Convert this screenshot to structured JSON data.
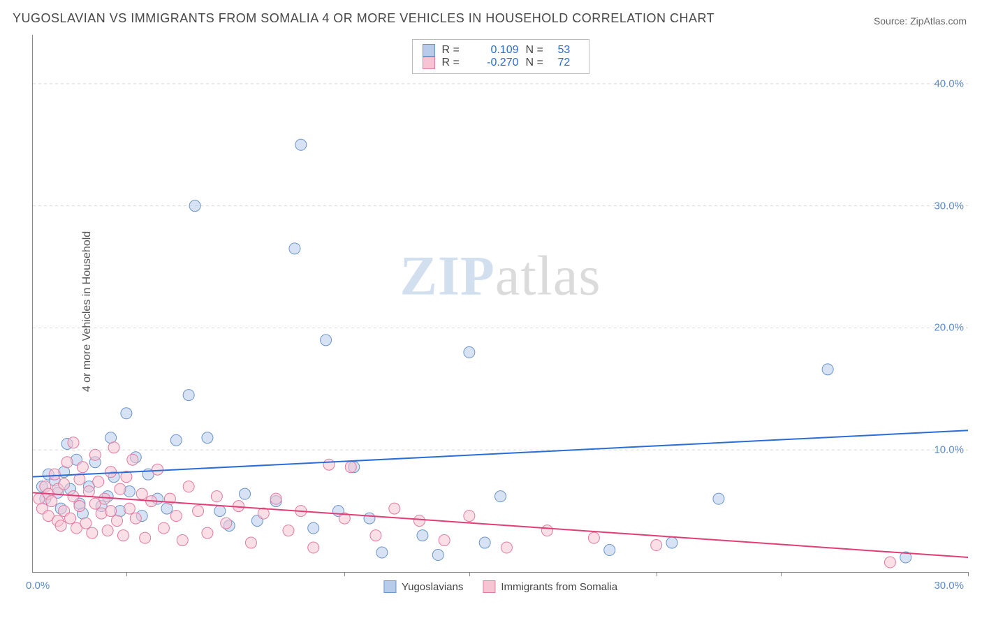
{
  "title": "YUGOSLAVIAN VS IMMIGRANTS FROM SOMALIA 4 OR MORE VEHICLES IN HOUSEHOLD CORRELATION CHART",
  "source_label": "Source:",
  "source_name": "ZipAtlas.com",
  "ylabel": "4 or more Vehicles in Household",
  "watermark_a": "ZIP",
  "watermark_b": "atlas",
  "chart": {
    "type": "scatter",
    "xlim": [
      0,
      30
    ],
    "ylim": [
      0,
      44
    ],
    "yticks": [
      10,
      20,
      30,
      40
    ],
    "ytick_labels": [
      "10.0%",
      "20.0%",
      "30.0%",
      "40.0%"
    ],
    "xticks": [
      3,
      10,
      14,
      20,
      24,
      30
    ],
    "xorigin_label": "0.0%",
    "xend_label": "30.0%",
    "background_color": "#ffffff",
    "grid_color": "#d8d8d8",
    "axis_color": "#888888",
    "tick_color": "#5b8ac9",
    "marker_radius": 8,
    "marker_opacity": 0.55,
    "series": [
      {
        "name": "Yugoslavians",
        "color_fill": "#b7cceb",
        "color_stroke": "#6a94c9",
        "R": "0.109",
        "N": "53",
        "trend": {
          "y_at_x0": 7.8,
          "y_at_xmax": 11.6,
          "stroke": "#2a6dd6",
          "width": 2
        },
        "points": [
          [
            0.3,
            7.0
          ],
          [
            0.4,
            6.0
          ],
          [
            0.5,
            8.0
          ],
          [
            0.7,
            7.5
          ],
          [
            0.8,
            6.5
          ],
          [
            0.9,
            5.2
          ],
          [
            1.0,
            8.2
          ],
          [
            1.1,
            10.5
          ],
          [
            1.2,
            6.8
          ],
          [
            1.4,
            9.2
          ],
          [
            1.5,
            5.6
          ],
          [
            1.6,
            4.8
          ],
          [
            1.8,
            7.0
          ],
          [
            2.0,
            9.0
          ],
          [
            2.2,
            5.4
          ],
          [
            2.4,
            6.2
          ],
          [
            2.5,
            11.0
          ],
          [
            2.6,
            7.8
          ],
          [
            2.8,
            5.0
          ],
          [
            3.0,
            13.0
          ],
          [
            3.1,
            6.6
          ],
          [
            3.3,
            9.4
          ],
          [
            3.5,
            4.6
          ],
          [
            3.7,
            8.0
          ],
          [
            4.0,
            6.0
          ],
          [
            4.3,
            5.2
          ],
          [
            4.6,
            10.8
          ],
          [
            5.0,
            14.5
          ],
          [
            5.2,
            30.0
          ],
          [
            5.6,
            11.0
          ],
          [
            6.0,
            5.0
          ],
          [
            6.3,
            3.8
          ],
          [
            6.8,
            6.4
          ],
          [
            7.2,
            4.2
          ],
          [
            7.8,
            5.8
          ],
          [
            8.4,
            26.5
          ],
          [
            8.6,
            35.0
          ],
          [
            9.0,
            3.6
          ],
          [
            9.4,
            19.0
          ],
          [
            9.8,
            5.0
          ],
          [
            10.3,
            8.6
          ],
          [
            10.8,
            4.4
          ],
          [
            11.2,
            1.6
          ],
          [
            12.5,
            3.0
          ],
          [
            13.0,
            1.4
          ],
          [
            14.0,
            18.0
          ],
          [
            14.5,
            2.4
          ],
          [
            15.0,
            6.2
          ],
          [
            18.5,
            1.8
          ],
          [
            20.5,
            2.4
          ],
          [
            22.0,
            6.0
          ],
          [
            25.5,
            16.6
          ],
          [
            28.0,
            1.2
          ]
        ]
      },
      {
        "name": "Immigrants from Somalia",
        "color_fill": "#f6c4d3",
        "color_stroke": "#e07ba0",
        "R": "-0.270",
        "N": "72",
        "trend": {
          "y_at_x0": 6.5,
          "y_at_xmax": 1.2,
          "stroke": "#e23d74",
          "width": 2
        },
        "points": [
          [
            0.2,
            6.0
          ],
          [
            0.3,
            5.2
          ],
          [
            0.4,
            7.0
          ],
          [
            0.5,
            4.6
          ],
          [
            0.5,
            6.4
          ],
          [
            0.6,
            5.8
          ],
          [
            0.7,
            8.0
          ],
          [
            0.8,
            4.2
          ],
          [
            0.8,
            6.8
          ],
          [
            0.9,
            3.8
          ],
          [
            1.0,
            7.2
          ],
          [
            1.0,
            5.0
          ],
          [
            1.1,
            9.0
          ],
          [
            1.2,
            4.4
          ],
          [
            1.3,
            6.2
          ],
          [
            1.3,
            10.6
          ],
          [
            1.4,
            3.6
          ],
          [
            1.5,
            7.6
          ],
          [
            1.5,
            5.4
          ],
          [
            1.6,
            8.6
          ],
          [
            1.7,
            4.0
          ],
          [
            1.8,
            6.6
          ],
          [
            1.9,
            3.2
          ],
          [
            2.0,
            9.6
          ],
          [
            2.0,
            5.6
          ],
          [
            2.1,
            7.4
          ],
          [
            2.2,
            4.8
          ],
          [
            2.3,
            6.0
          ],
          [
            2.4,
            3.4
          ],
          [
            2.5,
            8.2
          ],
          [
            2.5,
            5.0
          ],
          [
            2.6,
            10.2
          ],
          [
            2.7,
            4.2
          ],
          [
            2.8,
            6.8
          ],
          [
            2.9,
            3.0
          ],
          [
            3.0,
            7.8
          ],
          [
            3.1,
            5.2
          ],
          [
            3.2,
            9.2
          ],
          [
            3.3,
            4.4
          ],
          [
            3.5,
            6.4
          ],
          [
            3.6,
            2.8
          ],
          [
            3.8,
            5.8
          ],
          [
            4.0,
            8.4
          ],
          [
            4.2,
            3.6
          ],
          [
            4.4,
            6.0
          ],
          [
            4.6,
            4.6
          ],
          [
            4.8,
            2.6
          ],
          [
            5.0,
            7.0
          ],
          [
            5.3,
            5.0
          ],
          [
            5.6,
            3.2
          ],
          [
            5.9,
            6.2
          ],
          [
            6.2,
            4.0
          ],
          [
            6.6,
            5.4
          ],
          [
            7.0,
            2.4
          ],
          [
            7.4,
            4.8
          ],
          [
            7.8,
            6.0
          ],
          [
            8.2,
            3.4
          ],
          [
            8.6,
            5.0
          ],
          [
            9.0,
            2.0
          ],
          [
            9.5,
            8.8
          ],
          [
            10.0,
            4.4
          ],
          [
            10.2,
            8.6
          ],
          [
            11.0,
            3.0
          ],
          [
            11.6,
            5.2
          ],
          [
            12.4,
            4.2
          ],
          [
            13.2,
            2.6
          ],
          [
            14.0,
            4.6
          ],
          [
            15.2,
            2.0
          ],
          [
            16.5,
            3.4
          ],
          [
            18.0,
            2.8
          ],
          [
            20.0,
            2.2
          ],
          [
            27.5,
            0.8
          ]
        ]
      }
    ],
    "legend_stats": {
      "r_label": "R =",
      "n_label": "N ="
    }
  }
}
